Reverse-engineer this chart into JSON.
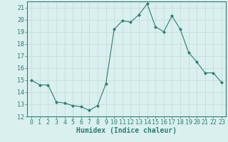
{
  "x": [
    0,
    1,
    2,
    3,
    4,
    5,
    6,
    7,
    8,
    9,
    10,
    11,
    12,
    13,
    14,
    15,
    16,
    17,
    18,
    19,
    20,
    21,
    22,
    23
  ],
  "y": [
    15.0,
    14.6,
    14.6,
    13.2,
    13.1,
    12.9,
    12.8,
    12.5,
    12.9,
    14.7,
    19.2,
    19.9,
    19.8,
    20.4,
    21.3,
    19.4,
    19.0,
    20.3,
    19.2,
    17.3,
    16.5,
    15.6,
    15.6,
    14.8
  ],
  "xlabel": "Humidex (Indice chaleur)",
  "ylim": [
    12,
    21.5
  ],
  "xlim": [
    -0.5,
    23.5
  ],
  "yticks": [
    12,
    13,
    14,
    15,
    16,
    17,
    18,
    19,
    20,
    21
  ],
  "xticks": [
    0,
    1,
    2,
    3,
    4,
    5,
    6,
    7,
    8,
    9,
    10,
    11,
    12,
    13,
    14,
    15,
    16,
    17,
    18,
    19,
    20,
    21,
    22,
    23
  ],
  "line_color": "#2e7d6e",
  "marker": "D",
  "marker_size": 2,
  "bg_color": "#d9f0ee",
  "grid_color": "#c0dbd7",
  "tick_color": "#2e7d6e",
  "label_color": "#2e7d6e",
  "xlabel_fontsize": 7,
  "tick_fontsize": 6
}
